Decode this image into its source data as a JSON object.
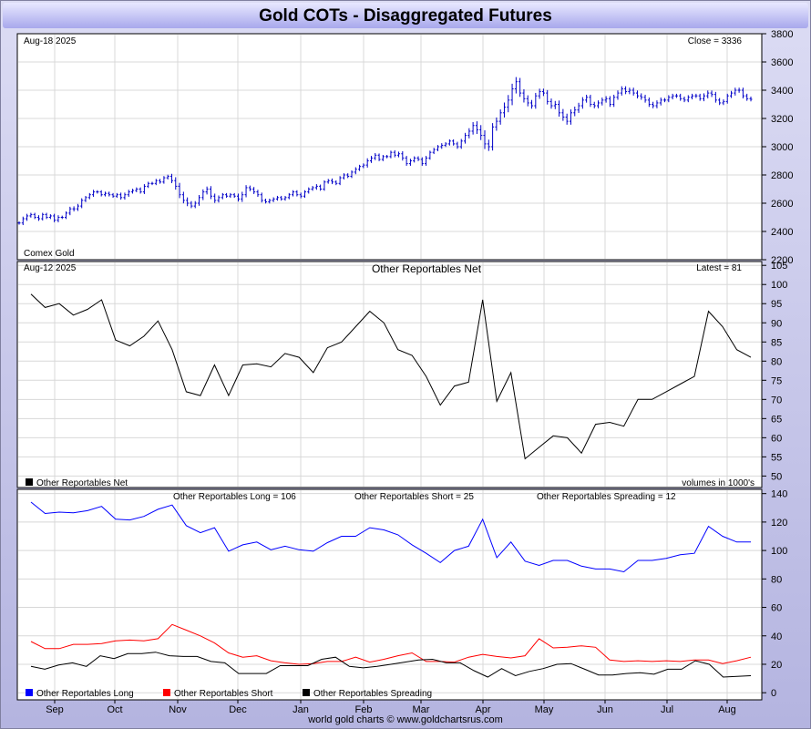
{
  "title": "Gold COTs - Disaggregated Futures",
  "footer": "world gold charts © www.goldchartsrus.com",
  "x_axis_labels": [
    "Sep",
    "Oct",
    "Nov",
    "Dec",
    "Jan",
    "Feb",
    "Mar",
    "Apr",
    "May",
    "Jun",
    "Jul",
    "Aug"
  ],
  "colors": {
    "price": "#0000c8",
    "net": "#000000",
    "long": "#0000ff",
    "short": "#ff0000",
    "spreading": "#000000",
    "grid": "#d8d8d8"
  },
  "chart_data": [
    {
      "type": "ohlc",
      "title_left": "Aug-18  2025",
      "title_right": "Close = 3336",
      "label": "Comex Gold",
      "ylim": [
        2200,
        3800
      ],
      "yticks": [
        2200,
        2400,
        2600,
        2800,
        3000,
        3200,
        3400,
        3600,
        3800
      ],
      "close": [
        2460,
        2490,
        2510,
        2520,
        2500,
        2490,
        2520,
        2500,
        2510,
        2480,
        2500,
        2500,
        2530,
        2560,
        2560,
        2580,
        2620,
        2640,
        2660,
        2680,
        2680,
        2660,
        2670,
        2660,
        2650,
        2660,
        2640,
        2660,
        2680,
        2690,
        2700,
        2680,
        2720,
        2740,
        2740,
        2760,
        2750,
        2780,
        2790,
        2760,
        2720,
        2660,
        2620,
        2600,
        2580,
        2600,
        2640,
        2680,
        2700,
        2650,
        2620,
        2640,
        2660,
        2650,
        2660,
        2650,
        2630,
        2660,
        2710,
        2700,
        2680,
        2660,
        2620,
        2610,
        2620,
        2630,
        2640,
        2630,
        2640,
        2660,
        2680,
        2660,
        2650,
        2680,
        2700,
        2710,
        2720,
        2700,
        2750,
        2760,
        2750,
        2740,
        2780,
        2800,
        2790,
        2820,
        2840,
        2860,
        2870,
        2900,
        2920,
        2940,
        2910,
        2930,
        2930,
        2960,
        2940,
        2950,
        2920,
        2880,
        2900,
        2920,
        2910,
        2880,
        2920,
        2960,
        2980,
        3000,
        3010,
        3020,
        3040,
        3020,
        3000,
        3040,
        3080,
        3110,
        3150,
        3120,
        3080,
        3020,
        3000,
        3140,
        3180,
        3240,
        3280,
        3330,
        3410,
        3460,
        3380,
        3340,
        3310,
        3290,
        3360,
        3390,
        3380,
        3320,
        3290,
        3300,
        3240,
        3210,
        3180,
        3240,
        3260,
        3290,
        3330,
        3350,
        3300,
        3290,
        3310,
        3330,
        3340,
        3300,
        3350,
        3380,
        3410,
        3390,
        3400,
        3380,
        3360,
        3350,
        3330,
        3300,
        3290,
        3310,
        3330,
        3330,
        3350,
        3360,
        3360,
        3340,
        3330,
        3350,
        3360,
        3360,
        3340,
        3360,
        3380,
        3370,
        3330,
        3310,
        3320,
        3360,
        3380,
        3400,
        3400,
        3360,
        3340,
        3336
      ],
      "amplitude": [
        20,
        25,
        25,
        20,
        20,
        25,
        20,
        20,
        20,
        25,
        25,
        20,
        20,
        25,
        30,
        25,
        25,
        20,
        20,
        25,
        20,
        20,
        20,
        20,
        20,
        20,
        25,
        25,
        25,
        20,
        20,
        20,
        25,
        20,
        20,
        20,
        20,
        20,
        20,
        30,
        40,
        40,
        35,
        35,
        25,
        25,
        30,
        30,
        30,
        35,
        30,
        25,
        20,
        20,
        20,
        20,
        30,
        35,
        30,
        25,
        25,
        25,
        25,
        20,
        20,
        20,
        20,
        20,
        20,
        20,
        20,
        20,
        25,
        20,
        20,
        20,
        25,
        20,
        20,
        20,
        25,
        20,
        20,
        20,
        20,
        20,
        25,
        20,
        20,
        30,
        25,
        25,
        20,
        20,
        20,
        20,
        25,
        25,
        30,
        25,
        25,
        20,
        20,
        25,
        25,
        20,
        20,
        20,
        25,
        20,
        20,
        20,
        25,
        25,
        30,
        35,
        40,
        50,
        55,
        60,
        50,
        45,
        45,
        40,
        55,
        60,
        60,
        55,
        45,
        45,
        40,
        35,
        35,
        35,
        35,
        35,
        35,
        40,
        45,
        45,
        40,
        40,
        40,
        35,
        35,
        30,
        30,
        30,
        30,
        30,
        30,
        30,
        30,
        30,
        30,
        30,
        30,
        30,
        30,
        30,
        30,
        30,
        30,
        30,
        30,
        25,
        25,
        25,
        25,
        25,
        25,
        25,
        25,
        25,
        25,
        30,
        30,
        30,
        30,
        25,
        25,
        25,
        25,
        30,
        30,
        30,
        25,
        25,
        25,
        20
      ]
    },
    {
      "type": "line",
      "title_left": "Aug-12  2025",
      "title_center": "Other Reportables Net",
      "title_right": "Latest = 81",
      "legend": "Other Reportables Net",
      "note_right": "volumes in 1000's",
      "ylim": [
        47,
        106
      ],
      "yticks": [
        50,
        55,
        60,
        65,
        70,
        75,
        80,
        85,
        90,
        95,
        100,
        105
      ],
      "values": [
        97.5,
        94,
        95,
        92,
        93.5,
        96,
        85.5,
        84,
        86.5,
        90.5,
        83,
        72,
        71,
        79,
        71,
        79,
        79.3,
        78.5,
        82,
        81,
        77,
        83.5,
        85,
        89,
        93,
        90,
        83,
        81.5,
        76,
        68.5,
        73.5,
        74.5,
        96,
        69.5,
        77,
        54.5,
        57.5,
        60.5,
        60,
        56,
        63.5,
        64,
        63,
        70,
        70,
        72,
        74,
        76,
        93,
        89,
        83,
        81
      ]
    },
    {
      "type": "line",
      "label_long": "Other Reportables Long = 106",
      "label_short": "Other Reportables Short = 25",
      "label_spreading": "Other Reportables Spreading = 12",
      "ylim": [
        -5,
        143
      ],
      "yticks": [
        0,
        20,
        40,
        60,
        80,
        100,
        120,
        140
      ],
      "series": [
        {
          "name": "Other Reportables Long",
          "values": [
            134,
            126,
            127,
            126.5,
            128,
            131,
            122,
            121.5,
            124,
            129,
            132,
            117.5,
            112.5,
            116,
            99.5,
            104,
            106,
            100.5,
            103,
            100.5,
            99.5,
            105.5,
            110,
            110,
            116,
            114.5,
            111,
            104,
            98,
            91.5,
            100,
            103,
            122,
            95,
            106,
            92.5,
            89.5,
            93,
            93,
            89,
            87,
            87,
            85,
            93,
            93,
            94.5,
            97,
            98,
            117,
            110,
            106,
            106
          ]
        },
        {
          "name": "Other Reportables Short",
          "values": [
            36,
            31,
            31,
            34,
            34,
            34.5,
            36.5,
            37,
            36.5,
            38,
            48,
            44,
            40,
            35,
            28,
            25,
            26,
            22.5,
            21,
            20,
            20.5,
            22,
            22,
            25,
            21.5,
            23.5,
            26,
            28,
            22,
            22,
            21.5,
            25,
            27,
            25.5,
            24.5,
            26,
            38,
            31.5,
            32,
            33,
            32,
            23,
            22,
            22.5,
            22,
            22.5,
            22,
            23,
            23,
            20.5,
            22.5,
            25
          ]
        },
        {
          "name": "Other Reportables Spreading",
          "values": [
            18.5,
            16.5,
            19.5,
            21,
            18.5,
            26,
            24,
            27.5,
            27.5,
            28.5,
            26,
            25.5,
            25.5,
            22,
            21,
            13.5,
            13.5,
            13.5,
            19,
            19,
            19,
            23.5,
            25,
            18.5,
            17.5,
            18.5,
            20,
            21.5,
            23,
            23.5,
            21,
            21,
            15.5,
            11,
            17,
            12,
            15,
            17,
            20,
            20.5,
            16.5,
            12.5,
            12.5,
            13.5,
            14,
            13,
            16.5,
            16.5,
            22.5,
            20,
            11,
            11.5,
            12
          ]
        }
      ]
    }
  ]
}
